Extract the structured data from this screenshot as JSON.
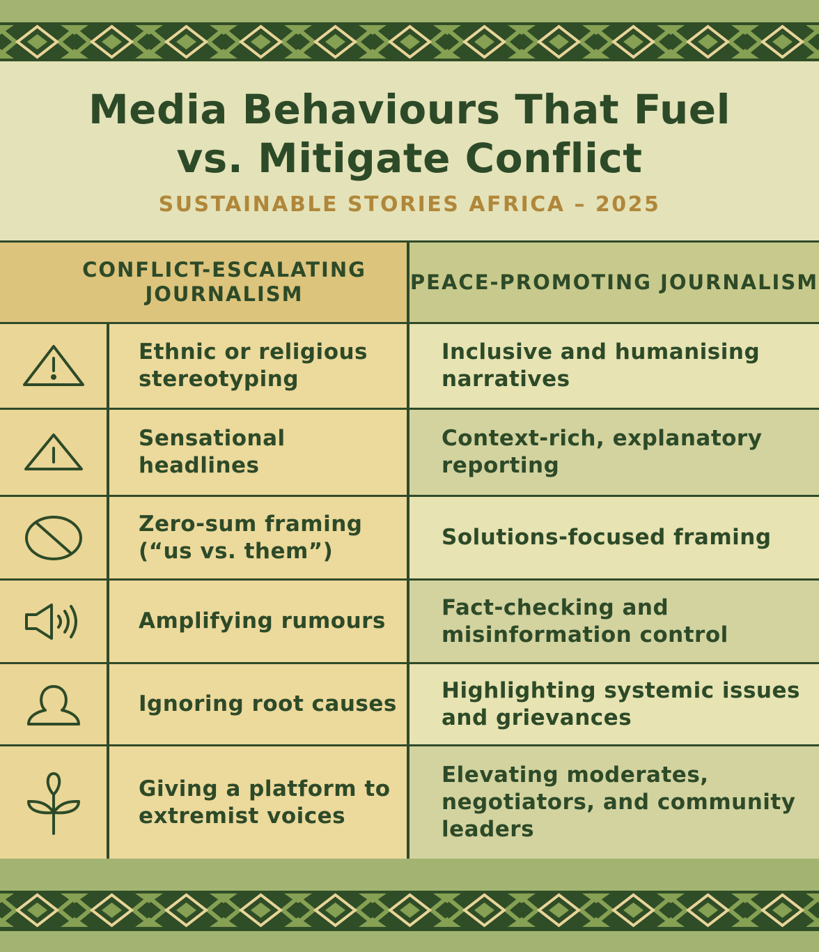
{
  "header": {
    "title_line1": "Media Behaviours That Fuel",
    "title_line2": "vs. Mitigate Conflict",
    "subtitle": "SUSTAINABLE STORIES AFRICA – 2025"
  },
  "columns": {
    "left": "CONFLICT-ESCALATING JOURNALISM",
    "right": "PEACE-PROMOTING JOURNALISM"
  },
  "rows": [
    {
      "icon": "warning-icon",
      "escalating": "Ethnic or religious stereotyping",
      "promoting": "Inclusive and humanising narratives"
    },
    {
      "icon": "warning-icon",
      "escalating": "Sensational headlines",
      "promoting": "Context-rich, explanatory reporting"
    },
    {
      "icon": "prohibited-icon",
      "escalating": "Zero-sum framing (“us vs. them”)",
      "promoting": "Solutions-focused framing"
    },
    {
      "icon": "speaker-icon",
      "escalating": "Amplifying rumours",
      "promoting": "Fact-checking and misinformation control"
    },
    {
      "icon": "person-icon",
      "escalating": "Ignoring root causes",
      "promoting": "Highlighting systemic issues and grievances"
    },
    {
      "icon": "plant-icon",
      "escalating": "Giving a platform to extremist voices",
      "promoting": "Elevating moderates, negotiators, and community leaders"
    }
  ],
  "colors": {
    "dark_green": "#2d4a28",
    "gold": "#b0873a",
    "left_column": "#ecd99c",
    "right_column": "#d3d3a0"
  }
}
